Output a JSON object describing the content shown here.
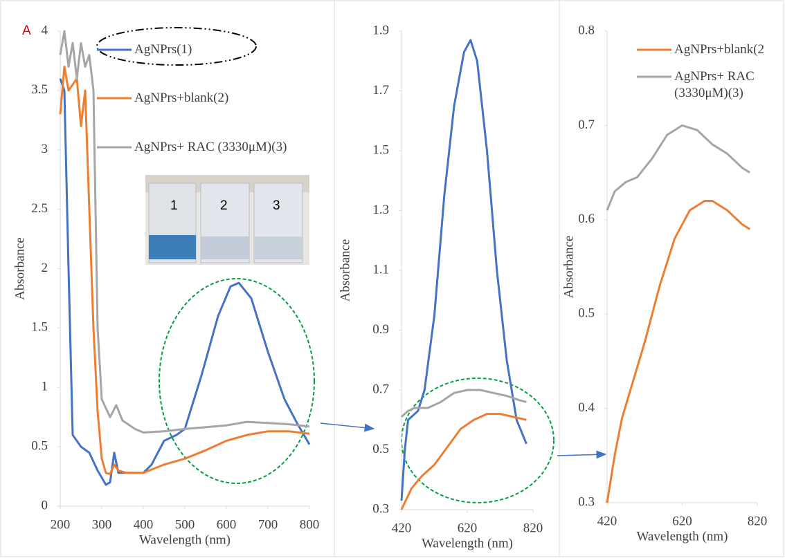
{
  "chart_data": [
    {
      "type": "line",
      "annotations": [
        "A"
      ],
      "inset_labels": [
        "1",
        "2",
        "3"
      ],
      "xlabel": "Wavelength (nm)",
      "ylabel": "Absorbance",
      "xlim": [
        200,
        800
      ],
      "xticks": [
        200,
        300,
        400,
        500,
        600,
        700,
        800
      ],
      "ylim": [
        0,
        4
      ],
      "yticks": [
        0,
        0.5,
        1,
        1.5,
        2,
        2.5,
        3,
        3.5,
        4
      ],
      "series": [
        {
          "name": "AgNPrs(1)",
          "color": "#4472c4",
          "x": [
            200,
            210,
            220,
            230,
            250,
            270,
            290,
            310,
            320,
            330,
            340,
            360,
            400,
            420,
            450,
            480,
            500,
            540,
            580,
            610,
            630,
            660,
            700,
            740,
            770,
            800
          ],
          "values": [
            3.6,
            3.5,
            2.0,
            0.6,
            0.5,
            0.45,
            0.3,
            0.18,
            0.2,
            0.45,
            0.28,
            0.28,
            0.28,
            0.35,
            0.55,
            0.6,
            0.65,
            1.1,
            1.6,
            1.85,
            1.88,
            1.75,
            1.3,
            0.9,
            0.7,
            0.52
          ]
        },
        {
          "name": "AgNPrs+blank(2)",
          "color": "#ed7d31",
          "x": [
            200,
            210,
            220,
            240,
            250,
            260,
            270,
            280,
            290,
            300,
            310,
            320,
            330,
            340,
            360,
            400,
            450,
            500,
            550,
            600,
            650,
            700,
            750,
            800
          ],
          "values": [
            3.3,
            3.7,
            3.5,
            3.6,
            3.2,
            3.5,
            2.5,
            1.5,
            0.8,
            0.4,
            0.28,
            0.27,
            0.35,
            0.3,
            0.28,
            0.28,
            0.35,
            0.4,
            0.47,
            0.55,
            0.6,
            0.63,
            0.63,
            0.61
          ]
        },
        {
          "name": "AgNPrs+ RAC (3330μM)(3)",
          "color": "#a5a5a5",
          "x": [
            200,
            210,
            220,
            230,
            240,
            250,
            260,
            270,
            280,
            290,
            300,
            320,
            335,
            350,
            380,
            400,
            450,
            500,
            600,
            650,
            700,
            750,
            800
          ],
          "values": [
            3.8,
            4.0,
            3.7,
            3.9,
            3.6,
            3.9,
            3.7,
            3.8,
            3.5,
            1.5,
            0.9,
            0.75,
            0.85,
            0.72,
            0.65,
            0.62,
            0.63,
            0.65,
            0.68,
            0.71,
            0.7,
            0.69,
            0.67
          ]
        }
      ]
    },
    {
      "type": "line",
      "xlabel": "Wavelength (nm)",
      "ylabel": "Absorbance",
      "xlim": [
        420,
        820
      ],
      "xticks": [
        420,
        620,
        820
      ],
      "ylim": [
        0.3,
        1.9
      ],
      "yticks": [
        0.3,
        0.5,
        0.7,
        0.9,
        1.1,
        1.3,
        1.5,
        1.7,
        1.9
      ],
      "series": [
        {
          "color": "#4472c4",
          "x": [
            420,
            430,
            440,
            470,
            490,
            520,
            550,
            580,
            610,
            630,
            650,
            680,
            710,
            740,
            770,
            800
          ],
          "values": [
            0.33,
            0.5,
            0.6,
            0.63,
            0.7,
            0.95,
            1.35,
            1.65,
            1.83,
            1.87,
            1.8,
            1.5,
            1.1,
            0.8,
            0.6,
            0.52
          ]
        },
        {
          "color": "#ed7d31",
          "x": [
            420,
            450,
            480,
            520,
            560,
            600,
            640,
            680,
            720,
            760,
            800
          ],
          "values": [
            0.3,
            0.37,
            0.41,
            0.45,
            0.51,
            0.57,
            0.6,
            0.62,
            0.62,
            0.61,
            0.6
          ]
        },
        {
          "color": "#a5a5a5",
          "x": [
            420,
            440,
            460,
            500,
            540,
            580,
            620,
            660,
            700,
            740,
            780,
            800
          ],
          "values": [
            0.61,
            0.63,
            0.64,
            0.64,
            0.66,
            0.69,
            0.7,
            0.7,
            0.69,
            0.68,
            0.665,
            0.66
          ]
        }
      ]
    },
    {
      "type": "line",
      "xlabel": "Wavelength (nm)",
      "ylabel": "Absorbance",
      "xlim": [
        420,
        820
      ],
      "xticks": [
        420,
        620,
        820
      ],
      "ylim": [
        0.3,
        0.8
      ],
      "yticks": [
        0.3,
        0.4,
        0.5,
        0.6,
        0.7,
        0.8
      ],
      "series": [
        {
          "name": "AgNPrs+blank(2",
          "color": "#ed7d31",
          "x": [
            420,
            440,
            460,
            490,
            520,
            560,
            600,
            640,
            680,
            700,
            740,
            780,
            800
          ],
          "values": [
            0.3,
            0.35,
            0.39,
            0.43,
            0.47,
            0.53,
            0.58,
            0.61,
            0.62,
            0.62,
            0.61,
            0.595,
            0.59
          ]
        },
        {
          "name": "AgNPrs+ RAC (3330μM)(3)",
          "color": "#a5a5a5",
          "x": [
            420,
            440,
            470,
            500,
            540,
            580,
            620,
            660,
            700,
            740,
            780,
            800
          ],
          "values": [
            0.61,
            0.63,
            0.64,
            0.645,
            0.665,
            0.69,
            0.7,
            0.695,
            0.68,
            0.67,
            0.655,
            0.65
          ]
        }
      ]
    }
  ]
}
